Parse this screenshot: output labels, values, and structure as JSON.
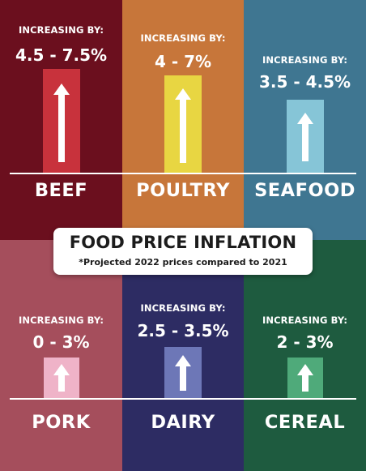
{
  "title": "FOOD PRICE INFLATION",
  "subtitle": "*Projected 2022 prices compared to 2021",
  "increase_label": "INCREASING BY:",
  "categories": [
    {
      "name": "BEEF",
      "range": "4.5 - 7.5%",
      "bg": "#6b0f1e",
      "bar": "#c8323c"
    },
    {
      "name": "POULTRY",
      "range": "4 - 7%",
      "bg": "#c7763a",
      "bar": "#e8d642"
    },
    {
      "name": "SEAFOOD",
      "range": "3.5 - 4.5%",
      "bg": "#3f7691",
      "bar": "#86c5d7"
    },
    {
      "name": "PORK",
      "range": "0 - 3%",
      "bg": "#a54e5c",
      "bar": "#efb3c8"
    },
    {
      "name": "DAIRY",
      "range": "2.5 - 3.5%",
      "bg": "#2d2c63",
      "bar": "#6d77b7"
    },
    {
      "name": "CEREAL",
      "range": "2 - 3%",
      "bg": "#1e5b3f",
      "bar": "#4faa7a"
    }
  ],
  "icons": {
    "arrow": "up-arrow-icon"
  }
}
